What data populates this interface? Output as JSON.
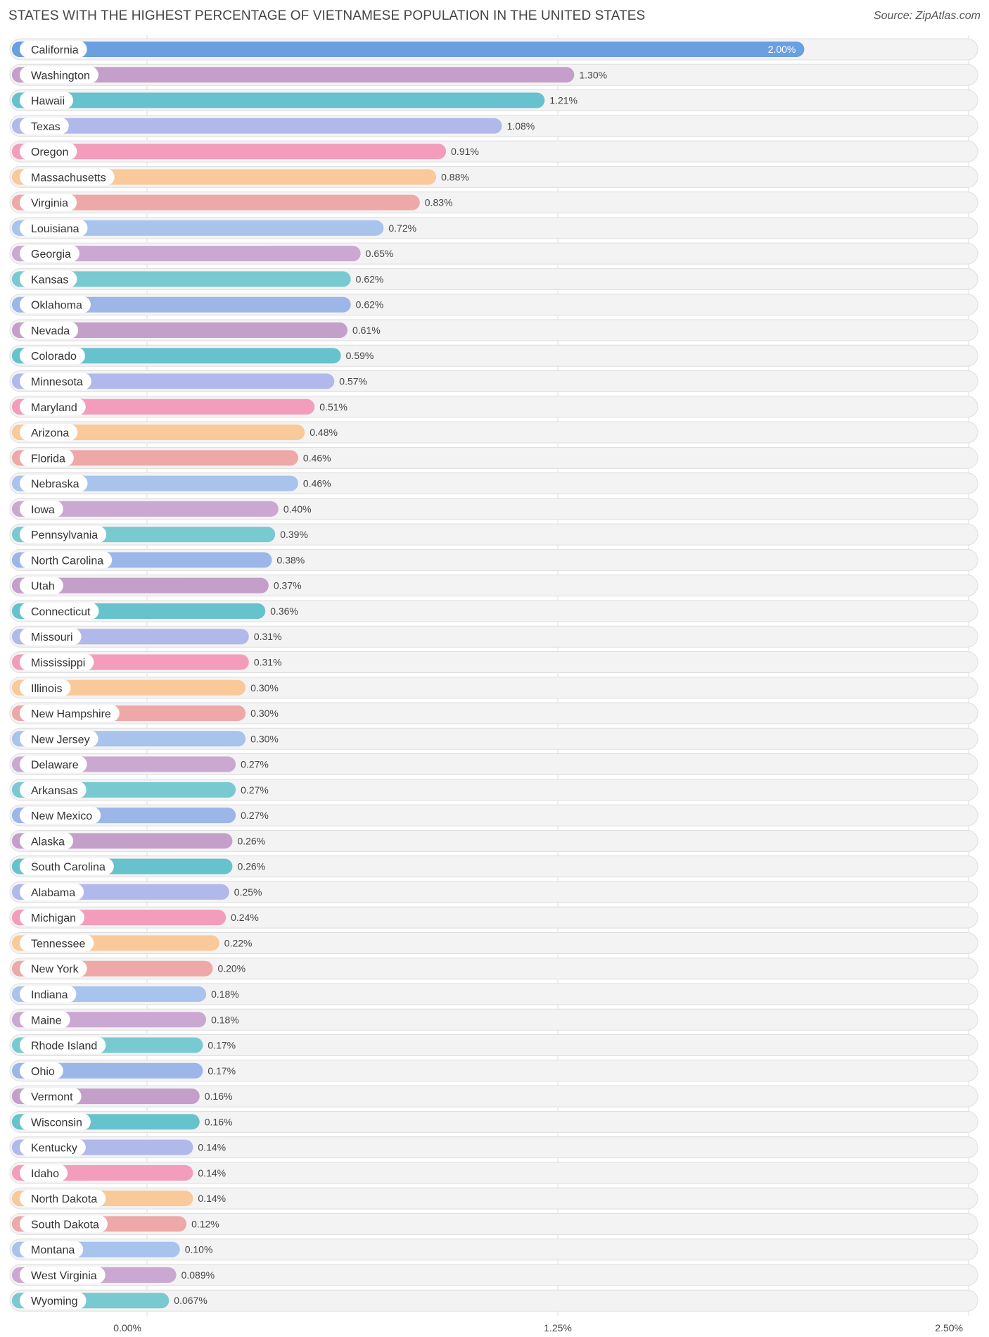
{
  "title": "STATES WITH THE HIGHEST PERCENTAGE OF VIETNAMESE POPULATION IN THE UNITED STATES",
  "source": "Source: ZipAtlas.com",
  "chart_data": {
    "type": "bar",
    "orientation": "horizontal",
    "title": "STATES WITH THE HIGHEST PERCENTAGE OF VIETNAMESE POPULATION IN THE UNITED STATES",
    "xlabel": "",
    "ylabel": "",
    "xlim": [
      0,
      2.5
    ],
    "ticks": [
      {
        "value": 0,
        "label": "0.00%"
      },
      {
        "value": 1.25,
        "label": "1.25%"
      },
      {
        "value": 2.5,
        "label": "2.50%"
      }
    ],
    "categories": [
      "California",
      "Washington",
      "Hawaii",
      "Texas",
      "Oregon",
      "Massachusetts",
      "Virginia",
      "Louisiana",
      "Georgia",
      "Kansas",
      "Oklahoma",
      "Nevada",
      "Colorado",
      "Minnesota",
      "Maryland",
      "Arizona",
      "Florida",
      "Nebraska",
      "Iowa",
      "Pennsylvania",
      "North Carolina",
      "Utah",
      "Connecticut",
      "Missouri",
      "Mississippi",
      "Illinois",
      "New Hampshire",
      "New Jersey",
      "Delaware",
      "Arkansas",
      "New Mexico",
      "Alaska",
      "South Carolina",
      "Alabama",
      "Michigan",
      "Tennessee",
      "New York",
      "Indiana",
      "Maine",
      "Rhode Island",
      "Ohio",
      "Vermont",
      "Wisconsin",
      "Kentucky",
      "Idaho",
      "North Dakota",
      "South Dakota",
      "Montana",
      "West Virginia",
      "Wyoming"
    ],
    "values": [
      2.0,
      1.3,
      1.21,
      1.08,
      0.91,
      0.88,
      0.83,
      0.72,
      0.65,
      0.62,
      0.62,
      0.61,
      0.59,
      0.57,
      0.51,
      0.48,
      0.46,
      0.46,
      0.4,
      0.39,
      0.38,
      0.37,
      0.36,
      0.31,
      0.31,
      0.3,
      0.3,
      0.3,
      0.27,
      0.27,
      0.27,
      0.26,
      0.26,
      0.25,
      0.24,
      0.22,
      0.2,
      0.18,
      0.18,
      0.17,
      0.17,
      0.16,
      0.16,
      0.14,
      0.14,
      0.14,
      0.12,
      0.1,
      0.089,
      0.067
    ],
    "value_labels": [
      "2.00%",
      "1.30%",
      "1.21%",
      "1.08%",
      "0.91%",
      "0.88%",
      "0.83%",
      "0.72%",
      "0.65%",
      "0.62%",
      "0.62%",
      "0.61%",
      "0.59%",
      "0.57%",
      "0.51%",
      "0.48%",
      "0.46%",
      "0.46%",
      "0.40%",
      "0.39%",
      "0.38%",
      "0.37%",
      "0.36%",
      "0.31%",
      "0.31%",
      "0.30%",
      "0.30%",
      "0.30%",
      "0.27%",
      "0.27%",
      "0.27%",
      "0.26%",
      "0.26%",
      "0.25%",
      "0.24%",
      "0.22%",
      "0.20%",
      "0.18%",
      "0.18%",
      "0.17%",
      "0.17%",
      "0.16%",
      "0.16%",
      "0.14%",
      "0.14%",
      "0.14%",
      "0.12%",
      "0.10%",
      "0.089%",
      "0.067%"
    ],
    "palette": [
      "#9cb6e8",
      "#c39fca",
      "#66c2cc",
      "#b1b8ea",
      "#f39cbb",
      "#f9c99a",
      "#eea8a8",
      "#a8c3ec",
      "#cba8d2",
      "#79c9d1"
    ],
    "first_bar_color": "#6a9fe0"
  }
}
